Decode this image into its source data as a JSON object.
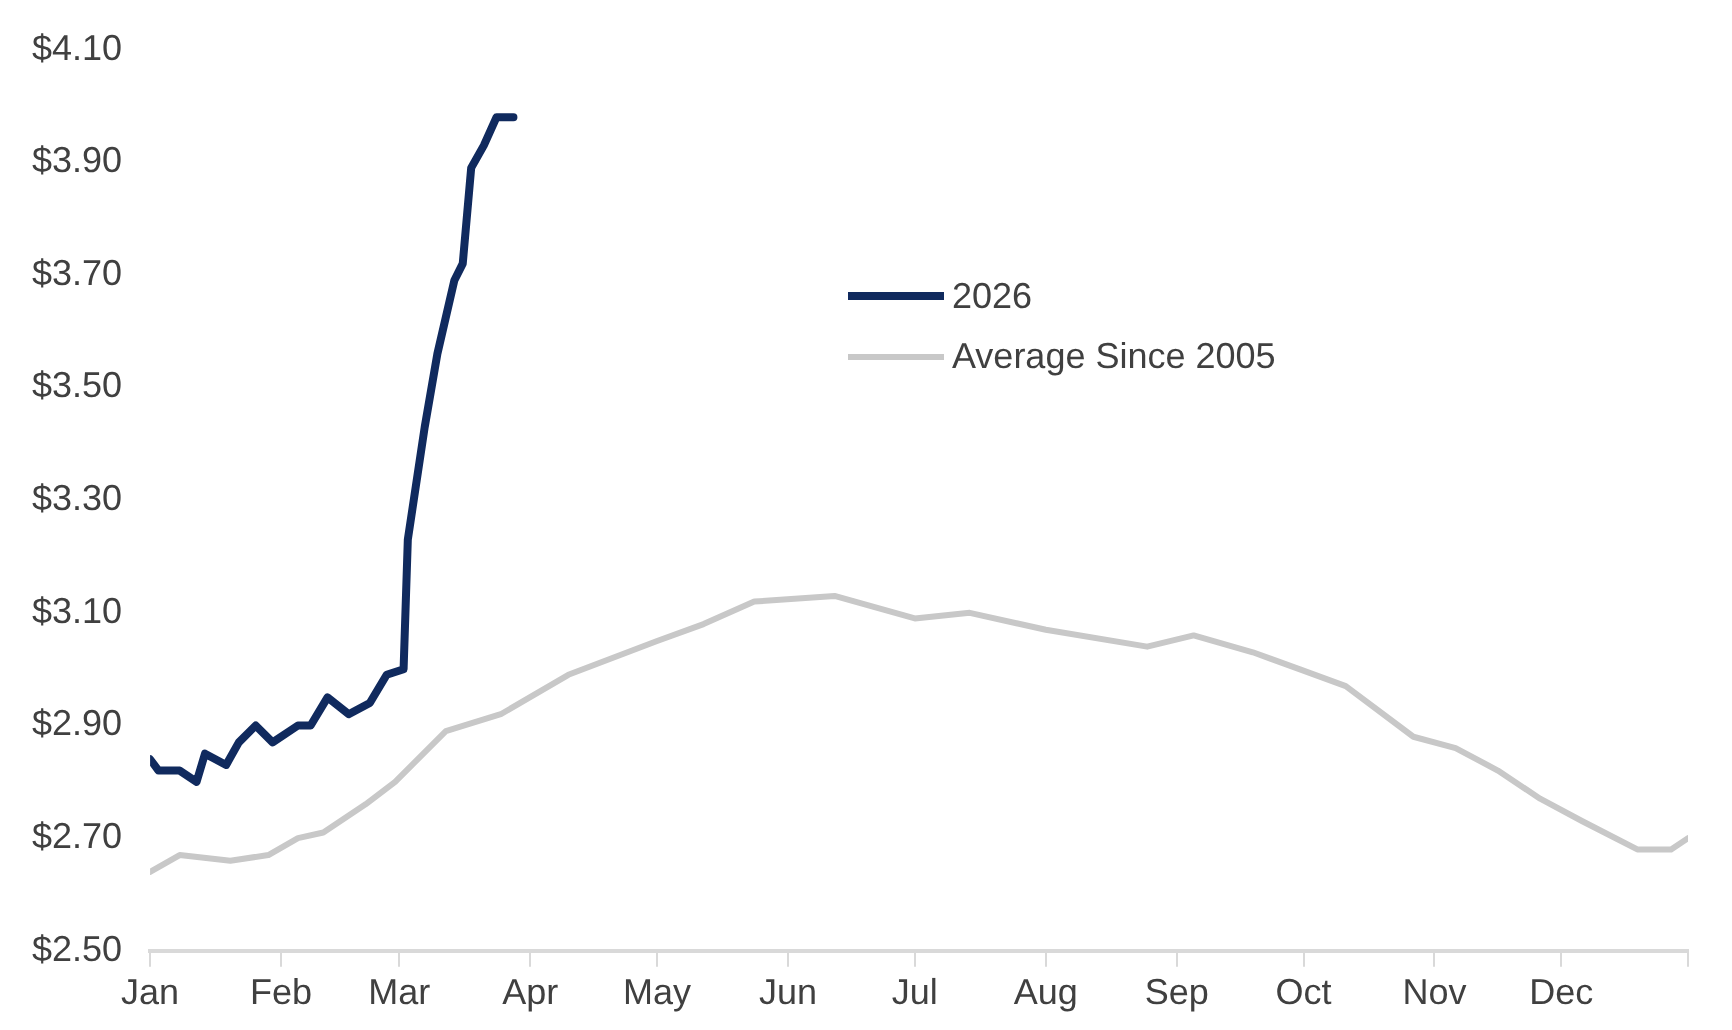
{
  "chart_data": {
    "type": "line",
    "xlim": [
      "--01-01",
      "--12-31"
    ],
    "xticks": [
      {
        "value": "--01-01",
        "label": "Jan"
      },
      {
        "value": "--02-01",
        "label": "Feb"
      },
      {
        "value": "--03-01",
        "label": "Mar"
      },
      {
        "value": "--04-01",
        "label": "Apr"
      },
      {
        "value": "--05-01",
        "label": "May"
      },
      {
        "value": "--06-01",
        "label": "Jun"
      },
      {
        "value": "--07-01",
        "label": "Jul"
      },
      {
        "value": "--08-01",
        "label": "Aug"
      },
      {
        "value": "--09-01",
        "label": "Sep"
      },
      {
        "value": "--10-01",
        "label": "Oct"
      },
      {
        "value": "--11-01",
        "label": "Nov"
      },
      {
        "value": "--12-01",
        "label": "Dec"
      },
      {
        "value": "--12-31",
        "label": null
      }
    ],
    "ylim": [
      2.5,
      4.1
    ],
    "yticks": [
      {
        "value": 2.5,
        "label": "$2.50"
      },
      {
        "value": 2.7,
        "label": "$2.70"
      },
      {
        "value": 2.9,
        "label": "$2.90"
      },
      {
        "value": 3.1,
        "label": "$3.10"
      },
      {
        "value": 3.3,
        "label": "$3.30"
      },
      {
        "value": 3.5,
        "label": "$3.50"
      },
      {
        "value": 3.7,
        "label": "$3.70"
      },
      {
        "value": 3.9,
        "label": "$3.90"
      },
      {
        "value": 4.1,
        "label": "$4.10"
      }
    ],
    "grid": false,
    "legend": "top",
    "marker": "none",
    "line_style": "solid",
    "series": [
      {
        "name": "2026",
        "color": "#102a5e",
        "x": [
          "--01-01",
          "--01-03",
          "--01-08",
          "--01-12",
          "--01-14",
          "--01-19",
          "--01-22",
          "--01-26",
          "--01-30",
          "--02-05",
          "--02-08",
          "--02-12",
          "--02-17",
          "--02-22",
          "--02-26",
          "--03-02",
          "--03-03",
          "--03-07",
          "--03-10",
          "--03-14",
          "--03-16",
          "--03-18",
          "--03-21",
          "--03-24",
          "--03-28"
        ],
        "values": [
          2.84,
          2.82,
          2.82,
          2.8,
          2.85,
          2.83,
          2.87,
          2.9,
          2.87,
          2.9,
          2.9,
          2.95,
          2.92,
          2.94,
          2.99,
          3.0,
          3.23,
          3.43,
          3.56,
          3.69,
          3.72,
          3.89,
          3.93,
          3.98,
          3.98
        ]
      },
      {
        "name": "Average Since 2005",
        "color": "#c8c8c8",
        "x": [
          "--01-01",
          "--01-08",
          "--01-20",
          "--01-29",
          "--02-05",
          "--02-11",
          "--02-21",
          "--02-28",
          "--03-12",
          "--03-25",
          "--04-10",
          "--05-01",
          "--05-12",
          "--05-24",
          "--06-12",
          "--07-01",
          "--07-14",
          "--08-01",
          "--08-25",
          "--09-05",
          "--09-19",
          "--09-30",
          "--10-11",
          "--10-27",
          "--11-06",
          "--11-16",
          "--11-26",
          "--12-06",
          "--12-19",
          "--12-27",
          "--12-31"
        ],
        "values": [
          2.64,
          2.67,
          2.66,
          2.67,
          2.7,
          2.71,
          2.76,
          2.8,
          2.89,
          2.92,
          2.99,
          3.05,
          3.08,
          3.12,
          3.13,
          3.09,
          3.1,
          3.07,
          3.04,
          3.06,
          3.03,
          3.0,
          2.97,
          2.88,
          2.86,
          2.82,
          2.77,
          2.73,
          2.68,
          2.68,
          2.7
        ]
      }
    ]
  }
}
